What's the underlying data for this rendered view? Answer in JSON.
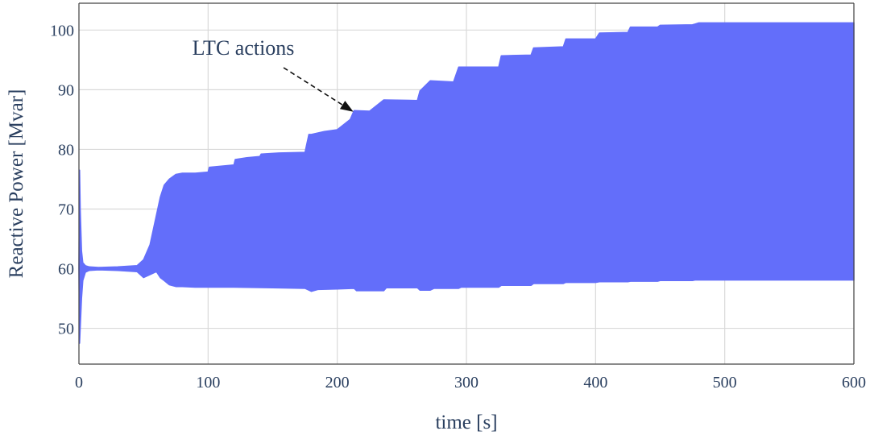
{
  "chart_data": {
    "type": "area",
    "xlabel": "time [s]",
    "ylabel": "Reactive Power [Mvar]",
    "xlim": [
      0,
      600
    ],
    "ylim": [
      44,
      104.5
    ],
    "xticks": [
      0,
      100,
      200,
      300,
      400,
      500,
      600
    ],
    "yticks": [
      50,
      60,
      70,
      80,
      90,
      100
    ],
    "grid": true,
    "series_color": "#636efa",
    "series": [
      {
        "upper": {
          "x": [
            0,
            0.5,
            1,
            2,
            3,
            5,
            8,
            15,
            30,
            45,
            50,
            55,
            60,
            63,
            66,
            70,
            75,
            80,
            90,
            100,
            101,
            110,
            120,
            121,
            130,
            140,
            141,
            155,
            175,
            176,
            178,
            180,
            190,
            200,
            210,
            213,
            225,
            236,
            262,
            264,
            272,
            290,
            294,
            325,
            327,
            350,
            352,
            375,
            377,
            400,
            403,
            425,
            427,
            448,
            450,
            475,
            477,
            480,
            482,
            600
          ],
          "y": [
            60,
            76.5,
            70,
            63,
            61,
            60.5,
            60.3,
            60.2,
            60.3,
            60.5,
            61.5,
            64,
            69,
            72,
            74,
            75,
            75.8,
            76,
            76,
            76.2,
            77,
            77.2,
            77.4,
            78.3,
            78.6,
            78.8,
            79.2,
            79.4,
            79.5,
            80.5,
            82.5,
            82.5,
            83,
            83.3,
            85,
            86.5,
            86.4,
            88.3,
            88.2,
            89.8,
            91.5,
            91.3,
            93.8,
            93.8,
            95.7,
            95.8,
            97,
            97.2,
            98.5,
            98.5,
            99.5,
            99.6,
            100.5,
            100.5,
            100.8,
            100.9,
            101,
            101.2,
            101.2,
            101.2
          ]
        },
        "lower": {
          "x": [
            0,
            0.5,
            1,
            2,
            3,
            5,
            8,
            15,
            30,
            45,
            50,
            55,
            60,
            63,
            66,
            70,
            75,
            80,
            90,
            100,
            110,
            120,
            150,
            175,
            180,
            185,
            200,
            213,
            215,
            236,
            238,
            262,
            264,
            272,
            275,
            294,
            296,
            325,
            327,
            350,
            352,
            375,
            377,
            400,
            403,
            425,
            427,
            448,
            450,
            475,
            477,
            480,
            482,
            600
          ],
          "y": [
            60,
            47.5,
            50,
            55,
            58,
            59.4,
            59.7,
            59.8,
            59.7,
            59.5,
            58.5,
            59,
            59.5,
            58.5,
            58,
            57.3,
            57,
            57,
            56.9,
            56.9,
            56.9,
            56.9,
            56.8,
            56.7,
            56.2,
            56.5,
            56.6,
            56.7,
            56.3,
            56.3,
            56.8,
            56.8,
            56.4,
            56.4,
            56.7,
            56.7,
            56.9,
            56.9,
            57.2,
            57.2,
            57.5,
            57.5,
            57.7,
            57.7,
            57.8,
            57.8,
            57.9,
            57.9,
            58.0,
            58.0,
            58.1,
            58.1,
            58.1,
            58.1
          ]
        }
      }
    ],
    "annotations": [
      {
        "text": "LTC actions",
        "x": 210,
        "y": 86.3
      }
    ]
  }
}
